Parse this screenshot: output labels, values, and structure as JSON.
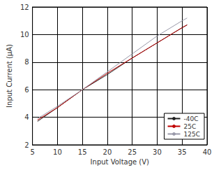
{
  "chart_data": {
    "type": "line",
    "x_label": "Input Voltage (V)",
    "y_label": "Input Current (µA)",
    "x": [
      6,
      10,
      15,
      20,
      25,
      30,
      35,
      36
    ],
    "series": [
      {
        "name": "-40C",
        "color": "#202020",
        "values": [
          3.7,
          4.7,
          6.0,
          7.1,
          8.3,
          9.4,
          10.5,
          10.7
        ]
      },
      {
        "name": "25C",
        "color": "#c00000",
        "values": [
          3.8,
          4.7,
          6.0,
          7.2,
          8.3,
          9.4,
          10.5,
          10.7
        ]
      },
      {
        "name": "125C",
        "color": "#9a9aaa",
        "values": [
          3.9,
          4.8,
          6.0,
          7.3,
          8.6,
          9.9,
          11.0,
          11.2
        ]
      }
    ],
    "xlim": [
      5,
      40
    ],
    "xticks": [
      5,
      10,
      15,
      20,
      25,
      30,
      35,
      40
    ],
    "ylim": [
      2,
      12
    ],
    "yticks": [
      2,
      4,
      6,
      8,
      10,
      12
    ],
    "grid": true,
    "legend": "lower right"
  }
}
